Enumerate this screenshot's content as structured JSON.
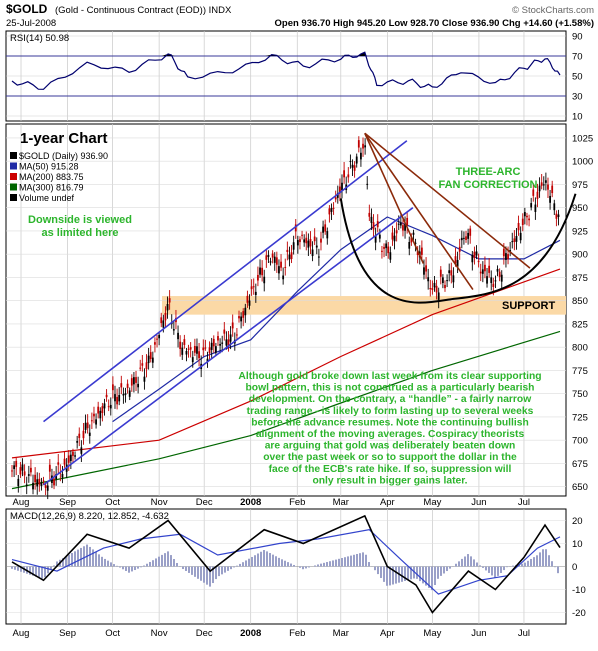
{
  "header": {
    "symbol": "$GOLD",
    "description": "(Gold - Continuous Contract (EOD)) INDX",
    "source": "© StockCharts.com",
    "date": "25-Jul-2008",
    "quote": "Open 936.70  High 945.20  Low 928.70  Close 936.90  Chg +14.60 (+1.58%)",
    "quote_color": "#0000cc",
    "chg_color": "#00aa00"
  },
  "rsi_panel": {
    "label": "RSI(14) 50.98",
    "ticks": [
      90,
      70,
      50,
      30,
      10
    ],
    "upper": 70,
    "lower": 30,
    "line_color": "#00006e",
    "fill_color": "#000000"
  },
  "price_panel": {
    "title": "1-year Chart",
    "title_color": "#3355cc",
    "ticks": [
      1025,
      1000,
      975,
      950,
      925,
      900,
      875,
      850,
      825,
      800,
      775,
      750,
      725,
      700,
      675,
      650
    ],
    "legend": [
      {
        "text": "$GOLD (Daily) 936.90",
        "color": "#000000"
      },
      {
        "text": "MA(50) 915.28",
        "color": "#1f2aa5"
      },
      {
        "text": "MA(200) 883.75",
        "color": "#cc0000"
      },
      {
        "text": "MA(300) 816.79",
        "color": "#006600"
      },
      {
        "text": "Volume undef",
        "color": "#000000"
      }
    ],
    "annotations": {
      "downside": [
        "Downside is viewed",
        "as limited here"
      ],
      "fan": [
        "THREE-ARC",
        "FAN CORRECTION"
      ],
      "support": "SUPPORT",
      "commentary": [
        "Although gold broke down last week from its clear supporting",
        "bowl pattern, this is not construed as a particularly bearish",
        "development. On the contrary, a “handle” - a fairly narrow",
        "trading range -  is likely to form lasting up to several weeks",
        "before the advance resumes. Note the continuing bullish",
        "alignment of the moving averages. Cospiracy theorists",
        "are arguing that gold was deliberately beaten down",
        "over the past week or so to support the dollar in the",
        "face of the ECB's rate hike. If so, suppression will",
        "only result in bigger gains later."
      ],
      "annotation_color": "#2db52d"
    },
    "support_zone": [
      835,
      855
    ],
    "support_color": "#fbd9a6"
  },
  "macd_panel": {
    "label": "MACD(12,26,9) 8.220, 12.852, -4.632",
    "ticks": [
      20,
      10,
      0,
      -10,
      -20
    ],
    "macd_color": "#000000",
    "signal_color": "#3344cc",
    "hist_color": "#9aa0c8"
  },
  "months": [
    "Aug",
    "Sep",
    "Oct",
    "Nov",
    "Dec",
    "2008",
    "Feb",
    "Mar",
    "Apr",
    "May",
    "Jun",
    "Jul"
  ],
  "chart_data": {
    "type": "line",
    "title": "$GOLD (Gold - Continuous Contract (EOD)) INDX",
    "x_start": "2007-07-26",
    "x_end": "2008-07-25",
    "price_ylim": [
      640,
      1040
    ],
    "price_series": [
      {
        "name": "$GOLD (Daily)",
        "points": [
          [
            "2007-07-26",
            670
          ],
          [
            "2007-08-16",
            652
          ],
          [
            "2007-08-31",
            672
          ],
          [
            "2007-09-14",
            712
          ],
          [
            "2007-09-28",
            742
          ],
          [
            "2007-10-12",
            755
          ],
          [
            "2007-10-26",
            785
          ],
          [
            "2007-11-07",
            845
          ],
          [
            "2007-11-16",
            800
          ],
          [
            "2007-11-30",
            790
          ],
          [
            "2007-12-10",
            805
          ],
          [
            "2007-12-21",
            812
          ],
          [
            "2008-01-02",
            860
          ],
          [
            "2008-01-15",
            900
          ],
          [
            "2008-01-22",
            880
          ],
          [
            "2008-02-01",
            920
          ],
          [
            "2008-02-15",
            905
          ],
          [
            "2008-02-28",
            965
          ],
          [
            "2008-03-17",
            1020
          ],
          [
            "2008-03-20",
            940
          ],
          [
            "2008-04-01",
            900
          ],
          [
            "2008-04-10",
            935
          ],
          [
            "2008-04-22",
            905
          ],
          [
            "2008-05-01",
            860
          ],
          [
            "2008-05-15",
            880
          ],
          [
            "2008-05-23",
            925
          ],
          [
            "2008-06-02",
            885
          ],
          [
            "2008-06-12",
            870
          ],
          [
            "2008-06-20",
            900
          ],
          [
            "2008-07-01",
            935
          ],
          [
            "2008-07-15",
            980
          ],
          [
            "2008-07-25",
            937
          ]
        ]
      },
      {
        "name": "MA(50)",
        "points": [
          [
            "2007-10-01",
            720
          ],
          [
            "2007-11-01",
            755
          ],
          [
            "2007-12-01",
            790
          ],
          [
            "2008-01-01",
            808
          ],
          [
            "2008-02-01",
            860
          ],
          [
            "2008-03-01",
            905
          ],
          [
            "2008-04-01",
            940
          ],
          [
            "2008-05-01",
            920
          ],
          [
            "2008-06-01",
            895
          ],
          [
            "2008-07-01",
            895
          ],
          [
            "2008-07-25",
            915
          ]
        ]
      },
      {
        "name": "MA(200)",
        "points": [
          [
            "2007-07-26",
            681
          ],
          [
            "2007-11-01",
            700
          ],
          [
            "2008-01-01",
            742
          ],
          [
            "2008-03-01",
            790
          ],
          [
            "2008-05-01",
            835
          ],
          [
            "2008-07-25",
            884
          ]
        ]
      },
      {
        "name": "MA(300)",
        "points": [
          [
            "2007-07-26",
            648
          ],
          [
            "2007-11-01",
            680
          ],
          [
            "2008-01-01",
            705
          ],
          [
            "2008-03-01",
            740
          ],
          [
            "2008-05-01",
            775
          ],
          [
            "2008-07-25",
            817
          ]
        ]
      }
    ],
    "rsi_series": [
      [
        "2007-07-26",
        45
      ],
      [
        "2007-08-16",
        38
      ],
      [
        "2007-09-14",
        62
      ],
      [
        "2007-10-12",
        55
      ],
      [
        "2007-11-07",
        72
      ],
      [
        "2007-11-20",
        48
      ],
      [
        "2007-12-20",
        55
      ],
      [
        "2008-01-15",
        70
      ],
      [
        "2008-02-05",
        60
      ],
      [
        "2008-03-01",
        68
      ],
      [
        "2008-03-17",
        72
      ],
      [
        "2008-03-25",
        42
      ],
      [
        "2008-04-15",
        45
      ],
      [
        "2008-05-01",
        38
      ],
      [
        "2008-05-20",
        55
      ],
      [
        "2008-06-12",
        42
      ],
      [
        "2008-07-01",
        58
      ],
      [
        "2008-07-15",
        68
      ],
      [
        "2008-07-25",
        51
      ]
    ],
    "macd_series": [
      {
        "name": "MACD",
        "points": [
          [
            "2007-07-26",
            2
          ],
          [
            "2007-08-16",
            -6
          ],
          [
            "2007-09-14",
            14
          ],
          [
            "2007-10-12",
            8
          ],
          [
            "2007-11-07",
            20
          ],
          [
            "2007-12-05",
            -2
          ],
          [
            "2008-01-10",
            16
          ],
          [
            "2008-02-05",
            10
          ],
          [
            "2008-03-17",
            22
          ],
          [
            "2008-04-01",
            0
          ],
          [
            "2008-04-20",
            -8
          ],
          [
            "2008-05-01",
            -20
          ],
          [
            "2008-05-25",
            -2
          ],
          [
            "2008-06-12",
            -10
          ],
          [
            "2008-07-01",
            4
          ],
          [
            "2008-07-15",
            18
          ],
          [
            "2008-07-25",
            8.22
          ]
        ]
      },
      {
        "name": "Signal",
        "points": [
          [
            "2007-07-26",
            3
          ],
          [
            "2007-08-25",
            -2
          ],
          [
            "2007-09-25",
            8
          ],
          [
            "2007-10-20",
            12
          ],
          [
            "2007-11-15",
            14
          ],
          [
            "2007-12-10",
            5
          ],
          [
            "2008-01-20",
            10
          ],
          [
            "2008-02-15",
            12
          ],
          [
            "2008-03-20",
            16
          ],
          [
            "2008-04-10",
            3
          ],
          [
            "2008-05-05",
            -12
          ],
          [
            "2008-06-01",
            -6
          ],
          [
            "2008-06-20",
            -4
          ],
          [
            "2008-07-10",
            8
          ],
          [
            "2008-07-25",
            12.85
          ]
        ]
      }
    ],
    "macd_ylim": [
      -25,
      25
    ],
    "rsi_ylim": [
      5,
      95
    ],
    "trendlines": [
      {
        "name": "upper channel",
        "from": [
          "2007-08-16",
          720
        ],
        "to": [
          "2008-04-14",
          1022
        ]
      },
      {
        "name": "lower channel",
        "from": [
          "2007-08-16",
          652
        ],
        "to": [
          "2008-04-18",
          950
        ]
      },
      {
        "name": "fan arc 1",
        "from": [
          "2008-03-17",
          1030
        ],
        "to": [
          "2008-04-25",
          890
        ]
      },
      {
        "name": "fan arc 2",
        "from": [
          "2008-03-17",
          1030
        ],
        "to": [
          "2008-05-28",
          862
        ]
      },
      {
        "name": "fan arc 3",
        "from": [
          "2008-03-17",
          1030
        ],
        "to": [
          "2008-07-05",
          885
        ]
      }
    ],
    "bowl": {
      "from": [
        "2008-03-01",
        960
      ],
      "bottom": [
        "2008-05-15",
        852
      ],
      "to": [
        "2008-07-30",
        965
      ]
    }
  }
}
